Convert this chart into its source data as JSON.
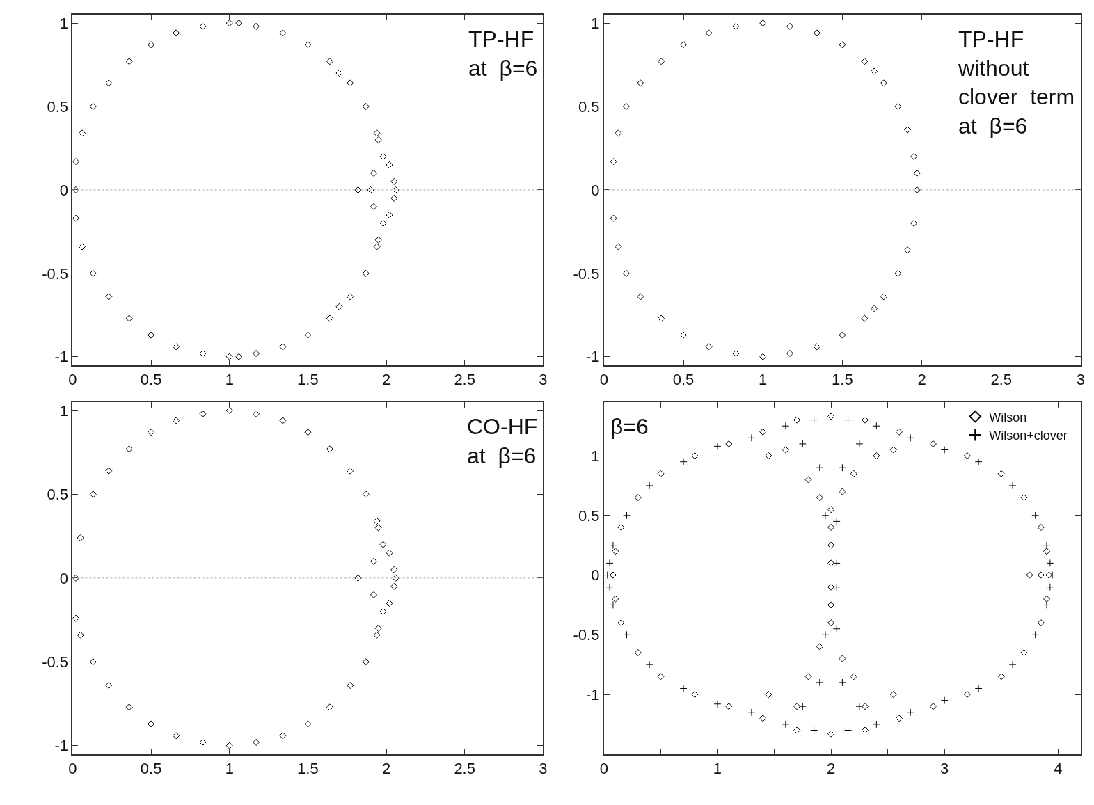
{
  "chart_data": [
    {
      "type": "scatter",
      "annotations": [
        "TP-HF\nat  β=6"
      ],
      "marker": "diamond",
      "xlim": [
        0,
        3
      ],
      "ylim": [
        -1.05,
        1.05
      ],
      "xticks": [
        0,
        0.5,
        1,
        1.5,
        2,
        2.5,
        3
      ],
      "yticks": [
        -1,
        -0.5,
        0,
        0.5,
        1
      ],
      "ref_lines": [
        {
          "axis": "y",
          "value": 0,
          "color": "#aaaaaa",
          "line_style": "dotted"
        }
      ],
      "series": [
        {
          "color": "#000000",
          "x": [
            1.94,
            1.87,
            1.77,
            1.64,
            1.5,
            1.34,
            1.17,
            1.0,
            0.83,
            0.66,
            0.5,
            0.36,
            0.23,
            0.13,
            0.06,
            0.02,
            0.02,
            0.02,
            0.06,
            0.13,
            0.23,
            0.36,
            0.5,
            0.66,
            0.83,
            1.0,
            1.17,
            1.34,
            1.5,
            1.64,
            1.77,
            1.87,
            1.94,
            1.95,
            1.98,
            2.02,
            2.05,
            2.06,
            2.05,
            2.02,
            1.98,
            1.95,
            1.92,
            1.9,
            1.92,
            1.82,
            1.06,
            1.06,
            1.7,
            1.7
          ],
          "values": [
            0.34,
            0.5,
            0.64,
            0.77,
            0.87,
            0.94,
            0.98,
            1.0,
            0.98,
            0.94,
            0.87,
            0.77,
            0.64,
            0.5,
            0.34,
            0.17,
            0,
            -0.17,
            -0.34,
            -0.5,
            -0.64,
            -0.77,
            -0.87,
            -0.94,
            -0.98,
            -1.0,
            -0.98,
            -0.94,
            -0.87,
            -0.77,
            -0.64,
            -0.5,
            -0.34,
            0.3,
            0.2,
            0.15,
            0.05,
            0,
            -0.05,
            -0.15,
            -0.2,
            -0.3,
            0.1,
            0,
            -0.1,
            0,
            1.0,
            -1.0,
            0.7,
            -0.7
          ]
        }
      ]
    },
    {
      "type": "scatter",
      "annotations": [
        "TP-HF\nwithout\nclover  term\nat  β=6"
      ],
      "marker": "diamond",
      "xlim": [
        0,
        3
      ],
      "ylim": [
        -1.05,
        1.05
      ],
      "xticks": [
        0,
        0.5,
        1,
        1.5,
        2,
        2.5,
        3
      ],
      "yticks": [
        -1,
        -0.5,
        0,
        0.5,
        1
      ],
      "ref_lines": [
        {
          "axis": "y",
          "value": 0,
          "color": "#aaaaaa",
          "line_style": "dotted"
        }
      ],
      "series": [
        {
          "color": "#000000",
          "x": [
            1.97,
            1.95,
            1.91,
            1.85,
            1.76,
            1.64,
            1.5,
            1.34,
            1.17,
            1.0,
            0.83,
            0.66,
            0.5,
            0.36,
            0.23,
            0.14,
            0.09,
            0.06,
            0.06,
            0.09,
            0.14,
            0.23,
            0.36,
            0.5,
            0.66,
            0.83,
            1.0,
            1.17,
            1.34,
            1.5,
            1.64,
            1.76,
            1.85,
            1.91,
            1.95,
            1.97,
            1.7,
            1.7
          ],
          "values": [
            0,
            0.2,
            0.36,
            0.5,
            0.64,
            0.77,
            0.87,
            0.94,
            0.98,
            1.0,
            0.98,
            0.94,
            0.87,
            0.77,
            0.64,
            0.5,
            0.34,
            0.17,
            -0.17,
            -0.34,
            -0.5,
            -0.64,
            -0.77,
            -0.87,
            -0.94,
            -0.98,
            -1.0,
            -0.98,
            -0.94,
            -0.87,
            -0.77,
            -0.64,
            -0.5,
            -0.36,
            -0.2,
            0.1,
            0.71,
            -0.71
          ]
        }
      ]
    },
    {
      "type": "scatter",
      "annotations": [
        "CO-HF\nat  β=6"
      ],
      "marker": "diamond",
      "xlim": [
        0,
        3
      ],
      "ylim": [
        -1.05,
        1.05
      ],
      "xticks": [
        0,
        0.5,
        1,
        1.5,
        2,
        2.5,
        3
      ],
      "yticks": [
        -1,
        -0.5,
        0,
        0.5,
        1
      ],
      "ref_lines": [
        {
          "axis": "y",
          "value": 0,
          "color": "#aaaaaa",
          "line_style": "dotted"
        }
      ],
      "series": [
        {
          "color": "#000000",
          "x": [
            1.94,
            1.87,
            1.77,
            1.64,
            1.5,
            1.34,
            1.17,
            1.0,
            0.83,
            0.66,
            0.5,
            0.36,
            0.23,
            0.13,
            0.05,
            0.02,
            0.02,
            0.05,
            0.13,
            0.23,
            0.36,
            0.5,
            0.66,
            0.83,
            1.0,
            1.17,
            1.34,
            1.5,
            1.64,
            1.77,
            1.87,
            1.94,
            1.95,
            1.98,
            2.02,
            2.05,
            2.06,
            2.05,
            2.02,
            1.98,
            1.95,
            1.92,
            1.92,
            1.82
          ],
          "values": [
            0.34,
            0.5,
            0.64,
            0.77,
            0.87,
            0.94,
            0.98,
            1.0,
            0.98,
            0.94,
            0.87,
            0.77,
            0.64,
            0.5,
            0.24,
            0,
            -0.24,
            -0.34,
            -0.5,
            -0.64,
            -0.77,
            -0.87,
            -0.94,
            -0.98,
            -1.0,
            -0.98,
            -0.94,
            -0.87,
            -0.77,
            -0.64,
            -0.5,
            -0.34,
            0.3,
            0.2,
            0.15,
            0.05,
            0,
            -0.05,
            -0.15,
            -0.2,
            -0.3,
            0.1,
            -0.1,
            0
          ]
        }
      ]
    },
    {
      "type": "scatter",
      "annotations": [
        "β=6"
      ],
      "legend": "top right",
      "xlim": [
        0,
        4.2
      ],
      "ylim": [
        -1.5,
        1.45
      ],
      "xticks": [
        0,
        {
          "value": 0.5,
          "label": null
        },
        1,
        {
          "value": 1.5,
          "label": null
        },
        2,
        {
          "value": 2.5,
          "label": null
        },
        3,
        {
          "value": 3.5,
          "label": null
        },
        4
      ],
      "yticks": [
        -1,
        -0.5,
        0,
        0.5,
        1
      ],
      "ref_lines": [
        {
          "axis": "y",
          "value": 0,
          "color": "#aaaaaa",
          "line_style": "dotted"
        }
      ],
      "series": [
        {
          "name": "Wilson",
          "marker": "diamond",
          "color": "#000000",
          "x": [
            0.08,
            0.1,
            0.15,
            0.3,
            0.5,
            0.8,
            1.1,
            1.4,
            1.7,
            2.0,
            2.3,
            2.6,
            2.9,
            3.2,
            3.5,
            3.7,
            3.85,
            3.9,
            3.92,
            0.1,
            0.15,
            0.3,
            0.5,
            0.8,
            1.1,
            1.4,
            1.7,
            2.0,
            2.3,
            2.6,
            2.9,
            3.2,
            3.5,
            3.7,
            3.85,
            3.9,
            1.45,
            1.6,
            1.8,
            1.9,
            2.0,
            2.1,
            2.2,
            2.4,
            2.55,
            2.0,
            2.0,
            2.0,
            2.0,
            2.0,
            2.0,
            1.9,
            2.1,
            1.8,
            2.2,
            1.45,
            2.55,
            1.7,
            2.3,
            3.75,
            3.85
          ],
          "values": [
            0,
            0.2,
            0.4,
            0.65,
            0.85,
            1.0,
            1.1,
            1.2,
            1.3,
            1.33,
            1.3,
            1.2,
            1.1,
            1.0,
            0.85,
            0.65,
            0.4,
            0.2,
            0,
            -0.2,
            -0.4,
            -0.65,
            -0.85,
            -1.0,
            -1.1,
            -1.2,
            -1.3,
            -1.33,
            -1.3,
            -1.2,
            -1.1,
            -1.0,
            -0.85,
            -0.65,
            -0.4,
            -0.2,
            1.0,
            1.05,
            0.8,
            0.65,
            0.55,
            0.7,
            0.85,
            1.0,
            1.05,
            0.4,
            0.25,
            0.1,
            -0.1,
            -0.25,
            -0.4,
            -0.6,
            -0.7,
            -0.85,
            -0.85,
            -1.0,
            -1.0,
            -1.1,
            -1.1,
            0,
            0
          ]
        },
        {
          "name": "Wilson+clover",
          "marker": "cross",
          "color": "#000000",
          "x": [
            0.03,
            0.05,
            0.08,
            0.2,
            0.4,
            0.7,
            1.0,
            1.3,
            1.6,
            1.85,
            2.15,
            2.4,
            2.7,
            3.0,
            3.3,
            3.6,
            3.8,
            3.9,
            3.93,
            3.95,
            0.05,
            0.08,
            0.2,
            0.4,
            0.7,
            1.0,
            1.3,
            1.6,
            1.85,
            2.15,
            2.4,
            2.7,
            3.0,
            3.3,
            3.6,
            3.8,
            3.9,
            3.93,
            2.05,
            2.05,
            2.05,
            2.05,
            1.95,
            1.95,
            2.1,
            1.9,
            2.1,
            1.9,
            1.75,
            2.25,
            1.75,
            2.25
          ],
          "values": [
            0,
            0.1,
            0.25,
            0.5,
            0.75,
            0.95,
            1.08,
            1.15,
            1.25,
            1.3,
            1.3,
            1.25,
            1.15,
            1.05,
            0.95,
            0.75,
            0.5,
            0.25,
            0.1,
            0,
            -0.1,
            -0.25,
            -0.5,
            -0.75,
            -0.95,
            -1.08,
            -1.15,
            -1.25,
            -1.3,
            -1.3,
            -1.25,
            -1.15,
            -1.05,
            -0.95,
            -0.75,
            -0.5,
            -0.25,
            -0.1,
            0.45,
            0.1,
            -0.1,
            -0.45,
            0.5,
            -0.5,
            0.9,
            0.9,
            -0.9,
            -0.9,
            1.1,
            1.1,
            -1.1,
            -1.1
          ]
        }
      ]
    }
  ]
}
